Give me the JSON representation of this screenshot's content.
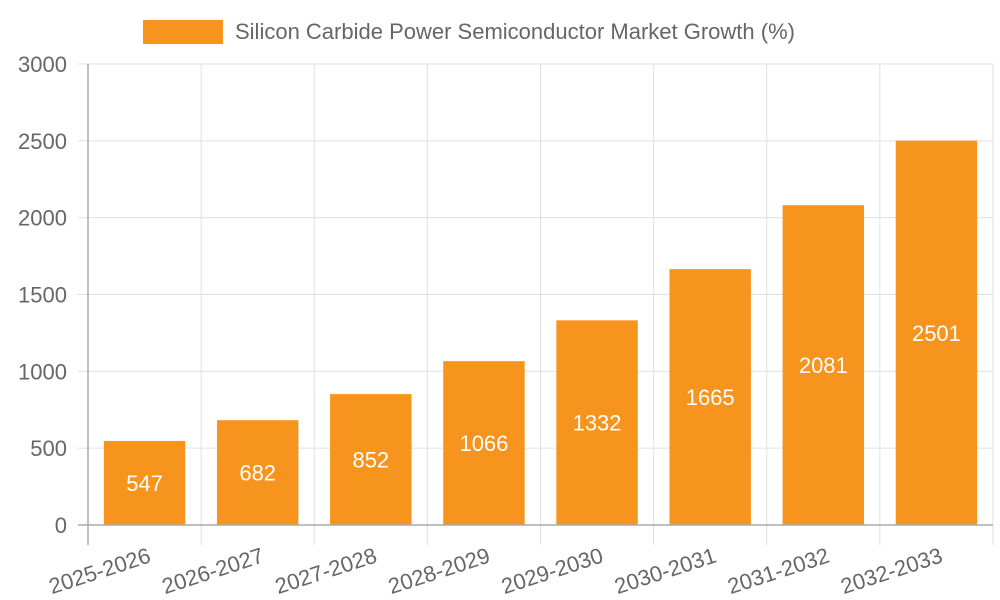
{
  "legend": {
    "label": "Silicon Carbide Power Semiconductor Market Growth (%)",
    "color": "#f7941d"
  },
  "colors": {
    "bar": "#f7941d",
    "bar_label": "#ffffff",
    "grid": "#e0e0e0",
    "axis": "#aaaaaa",
    "tick_text": "#666666"
  },
  "chart_data": {
    "type": "bar",
    "title": "",
    "xlabel": "",
    "ylabel": "",
    "categories": [
      "2025-2026",
      "2026-2027",
      "2027-2028",
      "2028-2029",
      "2029-2030",
      "2030-2031",
      "2031-2032",
      "2032-2033"
    ],
    "series": [
      {
        "name": "Silicon Carbide Power Semiconductor Market Growth (%)",
        "values": [
          547,
          682,
          852,
          1066,
          1332,
          1665,
          2081,
          2501
        ]
      }
    ],
    "values": [
      547,
      682,
      852,
      1066,
      1332,
      1665,
      2081,
      2501
    ],
    "ylim": [
      0,
      3000
    ],
    "yticks": [
      0,
      500,
      1000,
      1500,
      2000,
      2500,
      3000
    ],
    "grid": true,
    "legend_position": "top",
    "data_labels": true
  }
}
